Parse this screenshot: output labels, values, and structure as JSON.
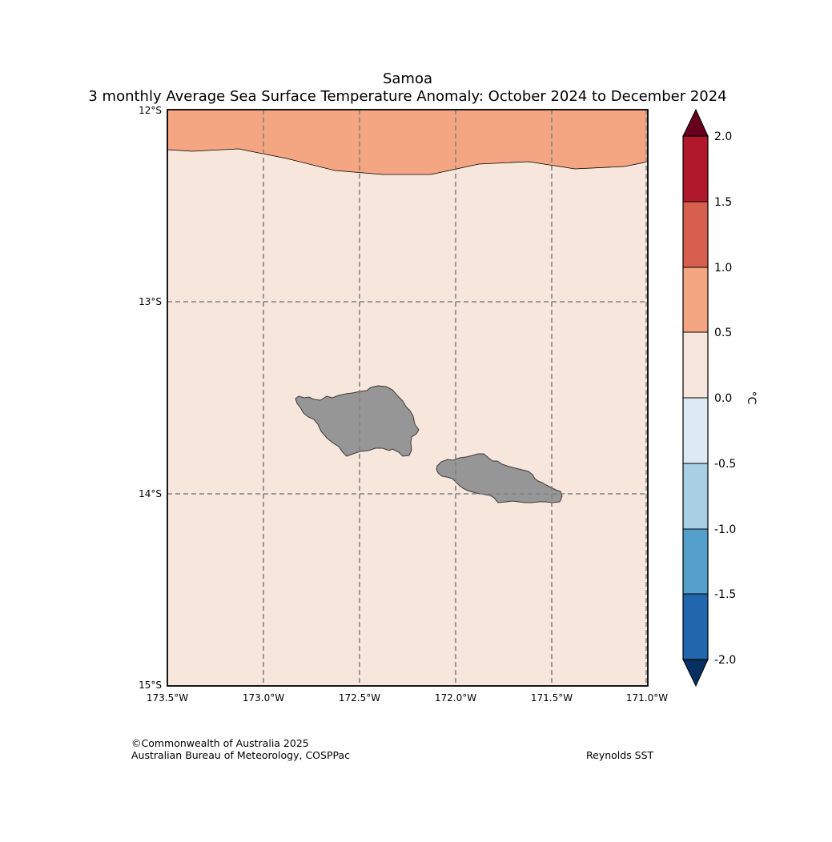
{
  "title": "Samoa",
  "subtitle": "3 monthly Average Sea Surface Temperature Anomaly: October 2024 to December 2024",
  "map": {
    "region": "Samoa",
    "lon_range": [
      -173.5,
      -171.0
    ],
    "lat_range": [
      -15.0,
      -12.0
    ],
    "x_ticks": [
      "173.5°W",
      "173.0°W",
      "172.5°W",
      "172.0°W",
      "171.5°W",
      "171.0°W"
    ],
    "y_ticks": [
      "12°S",
      "13°S",
      "14°S",
      "15°S"
    ],
    "gridlines": true,
    "background_anomaly_class": "0.0 to 0.5",
    "north_band_anomaly_class": "0.5 to 1.0",
    "land_color": "#969696",
    "land_features": [
      "Savai'i",
      "Upolu"
    ]
  },
  "colorbar": {
    "unit": "°C",
    "tick_labels": [
      "2.0",
      "1.5",
      "1.0",
      "0.5",
      "0.0",
      "-0.5",
      "-1.0",
      "-1.5",
      "-2.0"
    ],
    "bins_top_to_bottom": [
      {
        "range": "1.5 to 2.0",
        "color": "#b2182b"
      },
      {
        "range": "1.0 to 1.5",
        "color": "#d6604d"
      },
      {
        "range": "0.5 to 1.0",
        "color": "#f4a582"
      },
      {
        "range": "0.0 to 0.5",
        "color": "#f7e6dc"
      },
      {
        "range": "-0.5 to 0.0",
        "color": "#deeaf3"
      },
      {
        "range": "-1.0 to -0.5",
        "color": "#a8cfe4"
      },
      {
        "range": "-1.5 to -1.0",
        "color": "#559fcb"
      },
      {
        "range": "-2.0 to -1.5",
        "color": "#2166ac"
      }
    ],
    "extend_max_color": "#67001f",
    "extend_min_color": "#053061"
  },
  "footer": {
    "copyright": "©Commonwealth of Australia 2025",
    "agency": "Australian Bureau of Meteorology, COSPPac",
    "dataset": "Reynolds SST"
  }
}
